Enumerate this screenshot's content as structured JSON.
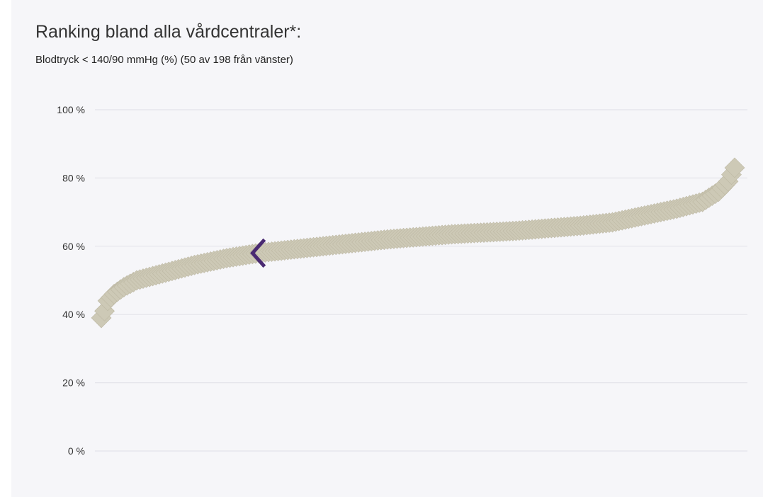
{
  "chart_data": {
    "type": "scatter",
    "title": "Ranking bland alla vårdcentraler*:",
    "subtitle": "Blodtryck < 140/90 mmHg (%) (50 av 198 från vänster)",
    "ylim": [
      0,
      100
    ],
    "yticks": [
      0,
      20,
      40,
      60,
      80,
      100
    ],
    "ytick_labels": [
      "0 %",
      "20 %",
      "40 %",
      "60 %",
      "80 %",
      "100 %"
    ],
    "grid": true,
    "n_units": 198,
    "highlight_rank": 50,
    "curve_knots": [
      [
        1,
        39
      ],
      [
        2,
        41
      ],
      [
        3,
        44
      ],
      [
        5,
        46
      ],
      [
        8,
        48
      ],
      [
        12,
        50
      ],
      [
        20,
        52
      ],
      [
        30,
        54.5
      ],
      [
        40,
        56.5
      ],
      [
        50,
        58
      ],
      [
        70,
        60
      ],
      [
        90,
        62
      ],
      [
        110,
        63.5
      ],
      [
        130,
        64.5
      ],
      [
        150,
        66
      ],
      [
        160,
        67
      ],
      [
        170,
        69
      ],
      [
        180,
        71
      ],
      [
        188,
        73
      ],
      [
        193,
        76
      ],
      [
        196,
        79
      ],
      [
        198,
        83
      ]
    ],
    "colors": {
      "points": "#cdc9b6",
      "point_edge": "#bdb8a3",
      "highlight": "#4a2a72",
      "grid": "#e4e4ea"
    }
  }
}
